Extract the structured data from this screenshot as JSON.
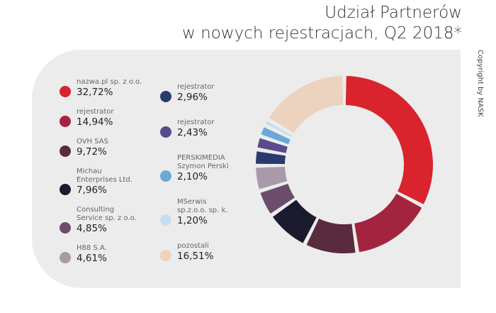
{
  "chart_data": {
    "type": "pie",
    "donut": true,
    "title": "Udział Partnerów\nw nowych rejestracjach, Q2 2018*",
    "note": "Copyright by NASK",
    "categories": [
      "nazwa.pl sp. z o.o.",
      "rejestrator",
      "OVH SAS",
      "Michau\nEnterprises Ltd.",
      "Consulting\nService sp. z o.o.",
      "H88 S.A.",
      "rejestrator",
      "rejestrator",
      "PERSKIMEDIA\nSzymon Perski",
      "MSerwis\nsp.z.o.o. sp. k.",
      "pozostali"
    ],
    "values": [
      32.72,
      14.94,
      9.72,
      7.96,
      4.85,
      4.61,
      2.96,
      2.43,
      2.1,
      1.2,
      16.51
    ],
    "value_labels": [
      "32,72%",
      "14,94%",
      "9,72%",
      "7,96%",
      "4,85%",
      "4,61%",
      "2,96%",
      "2,43%",
      "2,10%",
      "1,20%",
      "16,51%"
    ],
    "colors": [
      "#d9232d",
      "#a3243f",
      "#5a2a3e",
      "#1b1a2f",
      "#6b4d6b",
      "#a89aa8",
      "#2b3a6e",
      "#5a4a8e",
      "#6aa8d8",
      "#c5def0",
      "#ecd3c0"
    ]
  }
}
